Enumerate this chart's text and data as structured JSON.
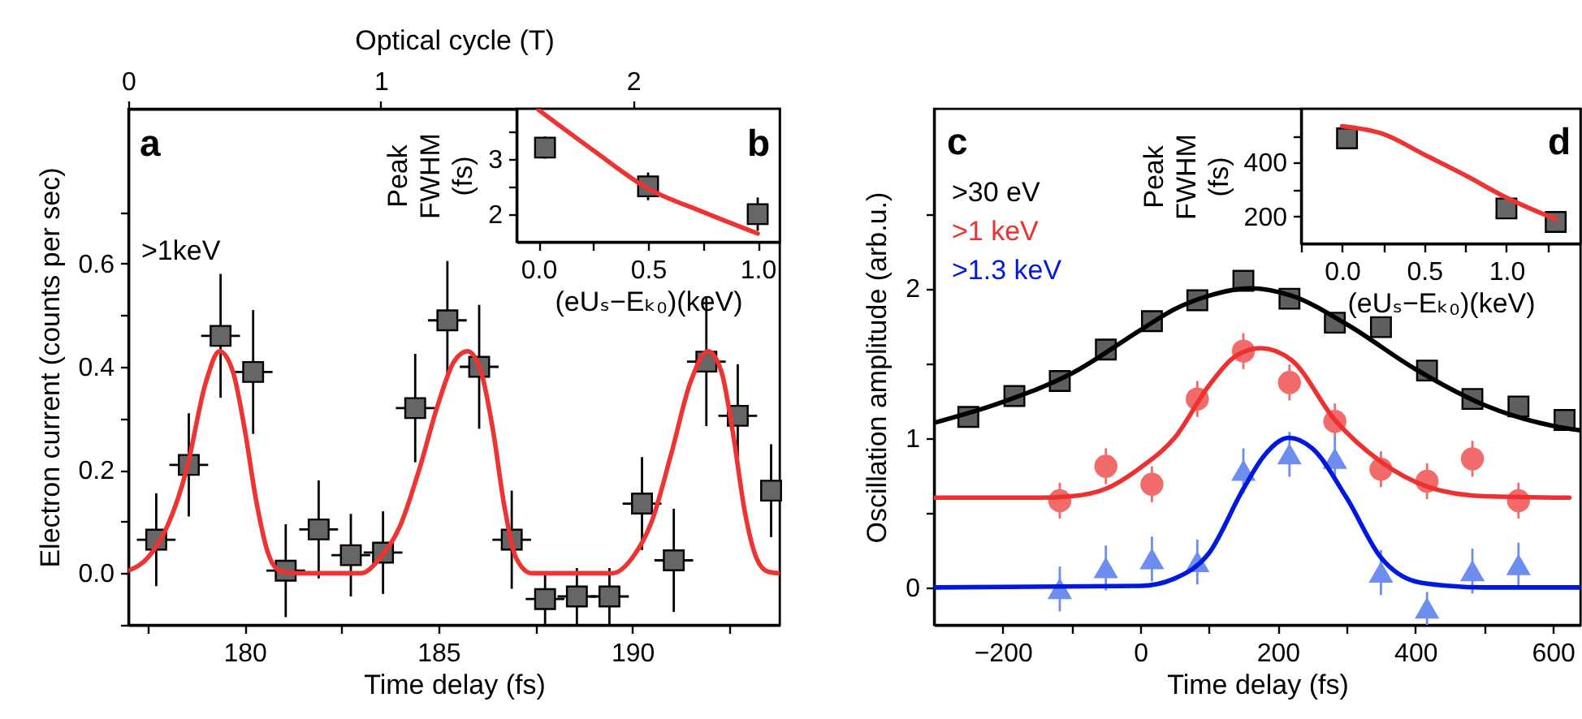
{
  "chart_data": [
    {
      "type": "scatter",
      "xlabel": "Time delay (fs)",
      "ylabel": "Electron current (counts per sec)",
      "x2label": "Optical cycle (T)",
      "xlim": [
        177,
        193.8
      ],
      "xticks": [
        {
          "value": 177.5,
          "label": null
        },
        180,
        {
          "value": 182.5,
          "label": null
        },
        185,
        {
          "value": 187.5,
          "label": null
        },
        190,
        {
          "value": 192.5,
          "label": null
        }
      ],
      "x2lim": [
        0,
        2.58
      ],
      "x2ticks": [
        0,
        1,
        2
      ],
      "ylim": [
        -0.1,
        0.9
      ],
      "yticks": [
        {
          "value": -0.1,
          "label": null
        },
        {
          "value": 0,
          "label": "0.0"
        },
        {
          "value": 0.1,
          "label": null
        },
        {
          "value": 0.2,
          "label": "0.2"
        },
        {
          "value": 0.3,
          "label": null
        },
        {
          "value": 0.4,
          "label": "0.4"
        },
        {
          "value": 0.5,
          "label": null
        },
        {
          "value": 0.6,
          "label": "0.6"
        },
        {
          "value": 0.7,
          "label": null
        }
      ],
      "annotations": [
        "a",
        ">1keV"
      ],
      "series": [
        {
          "marker": "square",
          "color": "#666666",
          "x": [
            177.72,
            178.56,
            179.38,
            180.22,
            181.06,
            181.91,
            182.74,
            183.57,
            184.4,
            185.23,
            186.05,
            186.89,
            187.75,
            188.57,
            189.41,
            190.25,
            191.07,
            191.91,
            192.72,
            193.58
          ],
          "values": [
            0.065,
            0.21,
            0.46,
            0.39,
            0.005,
            0.085,
            0.035,
            0.04,
            0.32,
            0.49,
            0.4,
            0.065,
            -0.05,
            -0.045,
            -0.045,
            0.135,
            0.025,
            0.41,
            0.305,
            0.16
          ],
          "errors": [
            0.09,
            0.1,
            0.12,
            0.12,
            0.09,
            0.095,
            0.08,
            0.08,
            0.105,
            0.115,
            0.12,
            0.095,
            0.05,
            0.055,
            0.055,
            0.09,
            0.1,
            0.125,
            0.1,
            0.09
          ],
          "xerrors": [
            0.5,
            0.5,
            0.5,
            0.5,
            0.5,
            0.5,
            0.5,
            0.5,
            0.5,
            0.5,
            0.5,
            0.5,
            0.5,
            0.5,
            0.5,
            0.5,
            0.5,
            0.5,
            0.5,
            0.2
          ]
        },
        {
          "type": "line",
          "color": "#ee3333",
          "x": [
            177,
            177.5,
            178,
            178.5,
            179,
            179.35,
            179.7,
            180,
            180.3,
            180.6,
            180.9,
            181.3,
            183,
            183.5,
            184,
            184.5,
            185,
            185.4,
            185.75,
            186.1,
            186.4,
            186.7,
            187,
            187.4,
            189.5,
            190,
            190.5,
            191,
            191.5,
            191.95,
            192.3,
            192.6,
            192.9,
            193.2,
            193.5,
            193.8
          ],
          "values": [
            0.005,
            0.03,
            0.09,
            0.2,
            0.37,
            0.43,
            0.39,
            0.28,
            0.14,
            0.04,
            0.005,
            0,
            0,
            0.03,
            0.09,
            0.2,
            0.33,
            0.41,
            0.43,
            0.39,
            0.28,
            0.13,
            0.03,
            0,
            0,
            0.03,
            0.1,
            0.23,
            0.37,
            0.43,
            0.39,
            0.27,
            0.12,
            0.03,
            0.003,
            0
          ]
        }
      ]
    },
    {
      "type": "scatter",
      "xlabel": "(eUₛ−Eₖ₀)(keV)",
      "ylabel": "Peak FWHM (fs)",
      "xlim": [
        -0.1,
        1.1
      ],
      "xticks": [
        {
          "value": 0,
          "label": "0.0"
        },
        {
          "value": 0.25,
          "label": null
        },
        {
          "value": 0.5,
          "label": "0.5"
        },
        {
          "value": 0.75,
          "label": null
        },
        {
          "value": 1,
          "label": "1.0"
        }
      ],
      "ylim": [
        1.5,
        3.9
      ],
      "yticks": [
        2,
        {
          "value": 2.5,
          "label": null
        },
        3,
        {
          "value": 3.5,
          "label": null
        }
      ],
      "annotations": [
        "b"
      ],
      "series": [
        {
          "marker": "square",
          "color": "#666666",
          "x": [
            0.03,
            0.5,
            1.0
          ],
          "values": [
            3.2,
            2.5,
            2.0
          ],
          "errors": [
            0.2,
            0.25,
            0.3
          ]
        },
        {
          "type": "line",
          "color": "#ee3333",
          "x": [
            0,
            0.25,
            0.5,
            0.75,
            1.0
          ],
          "values": [
            3.88,
            3.15,
            2.46,
            2.04,
            1.65
          ]
        }
      ]
    },
    {
      "type": "scatter",
      "xlabel": "Time delay (fs)",
      "ylabel": "Oscillation amplitude (arb.u.)",
      "xlim": [
        -300,
        640
      ],
      "xticks": [
        {
          "value": -200,
          "label": "−200"
        },
        {
          "value": -100,
          "label": null
        },
        0,
        {
          "value": 100,
          "label": null
        },
        200,
        {
          "value": 300,
          "label": null
        },
        400,
        {
          "value": 500,
          "label": null
        },
        600
      ],
      "ylim": [
        -0.25,
        3.2
      ],
      "yticks": [
        0,
        {
          "value": 0.5,
          "label": null
        },
        1,
        {
          "value": 1.5,
          "label": null
        },
        2,
        {
          "value": 2.5,
          "label": null
        }
      ],
      "legend": "top left",
      "annotations": [
        "c"
      ],
      "series": [
        {
          "marker": "square",
          "color": "#5f5f5f",
          "x": [
            -250,
            -183,
            -117,
            -50,
            17,
            83,
            150,
            217,
            283,
            350,
            417,
            483,
            550,
            617
          ],
          "values": [
            1.14,
            1.28,
            1.38,
            1.59,
            1.78,
            1.92,
            2.05,
            1.93,
            1.77,
            1.74,
            1.45,
            1.26,
            1.21,
            1.12
          ]
        },
        {
          "marker": "circle",
          "color": "#f26b6b",
          "x": [
            -117,
            -50,
            17,
            83,
            150,
            217,
            283,
            350,
            417,
            483,
            550
          ],
          "values": [
            0.58,
            0.81,
            0.69,
            1.26,
            1.58,
            1.37,
            1.11,
            0.79,
            0.71,
            0.86,
            0.58
          ],
          "errors": [
            0.12,
            0.12,
            0.12,
            0.12,
            0.12,
            0.12,
            0.12,
            0.12,
            0.12,
            0.12,
            0.12
          ]
        },
        {
          "marker": "triangle",
          "color": "#6d8ef0",
          "x": [
            -117,
            -50,
            17,
            83,
            150,
            217,
            283,
            350,
            417,
            483,
            550
          ],
          "values": [
            -0.01,
            0.13,
            0.19,
            0.17,
            0.78,
            0.89,
            0.86,
            0.1,
            -0.14,
            0.11,
            0.15
          ],
          "errors": [
            0.15,
            0.15,
            0.15,
            0.15,
            0.15,
            0.15,
            0.15,
            0.15,
            0.11,
            0.15,
            0.15
          ]
        },
        {
          "type": "line",
          "name": ">30 eV",
          "color": "#000000",
          "x": [
            -300,
            -200,
            -100,
            0,
            50,
            100,
            160,
            220,
            300,
            400,
            500,
            600,
            640
          ],
          "values": [
            1.1,
            1.24,
            1.43,
            1.72,
            1.86,
            1.95,
            2.0,
            1.95,
            1.76,
            1.46,
            1.22,
            1.08,
            1.05
          ]
        },
        {
          "type": "line",
          "name": ">1 keV",
          "color": "#ee3030",
          "x": [
            -300,
            -150,
            -100,
            -50,
            0,
            50,
            100,
            140,
            175,
            220,
            283,
            350,
            420,
            500,
            624
          ],
          "values": [
            0.6,
            0.6,
            0.61,
            0.66,
            0.8,
            1.0,
            1.35,
            1.55,
            1.6,
            1.52,
            1.12,
            0.84,
            0.67,
            0.61,
            0.6
          ]
        },
        {
          "type": "line",
          "name": ">1.3 keV",
          "color": "#0018e0",
          "x": [
            -300,
            0,
            50,
            100,
            150,
            180,
            216,
            250,
            300,
            350,
            400,
            450,
            500,
            640
          ],
          "values": [
            0,
            0.01,
            0.06,
            0.23,
            0.66,
            0.88,
            1.0,
            0.93,
            0.6,
            0.2,
            0.04,
            0.01,
            0,
            0
          ]
        }
      ]
    },
    {
      "type": "scatter",
      "xlabel": "(eUₛ−Eₖ₀)(keV)",
      "ylabel": "Peak FWHM (fs)",
      "xlim": [
        -0.25,
        1.45
      ],
      "xticks": [
        {
          "value": -0.25,
          "label": null
        },
        {
          "value": 0,
          "label": "0.0"
        },
        {
          "value": 0.25,
          "label": null
        },
        {
          "value": 0.5,
          "label": "0.5"
        },
        {
          "value": 0.75,
          "label": null
        },
        {
          "value": 1,
          "label": "1.0"
        },
        {
          "value": 1.25,
          "label": null
        }
      ],
      "ylim": [
        100,
        600
      ],
      "yticks": [
        200,
        {
          "value": 300,
          "label": null
        },
        400,
        {
          "value": 500,
          "label": null
        }
      ],
      "annotations": [
        "d"
      ],
      "series": [
        {
          "marker": "square",
          "color": "#666666",
          "x": [
            0.03,
            1.0,
            1.3
          ],
          "values": [
            490,
            230,
            180
          ]
        },
        {
          "type": "line",
          "color": "#ee3333",
          "x": [
            0,
            0.25,
            0.5,
            0.75,
            1.0,
            1.3
          ],
          "values": [
            535,
            506,
            430,
            353,
            270,
            190
          ]
        }
      ]
    }
  ]
}
